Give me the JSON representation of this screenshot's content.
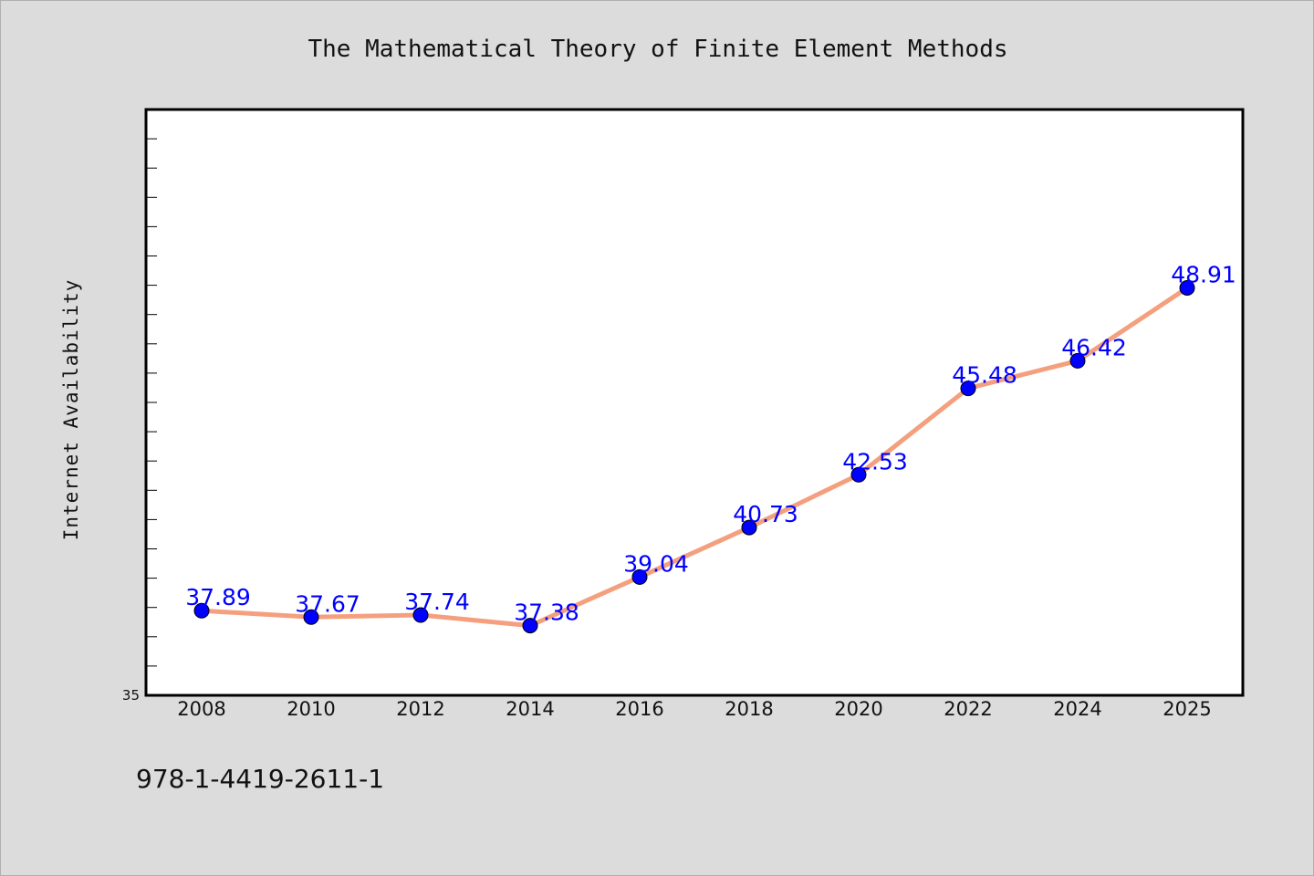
{
  "chart_data": {
    "type": "line",
    "title": "The Mathematical Theory of Finite Element Methods",
    "xlabel": "",
    "ylabel": "Internet Availability",
    "categories": [
      "2008",
      "2010",
      "2012",
      "2014",
      "2016",
      "2018",
      "2020",
      "2022",
      "2024",
      "2025"
    ],
    "series": [
      {
        "values": [
          37.89,
          37.67,
          37.74,
          37.38,
          39.04,
          40.73,
          42.53,
          45.48,
          46.42,
          48.91
        ],
        "data_labels": [
          "37.89",
          "37.67",
          "37.74",
          "37.38",
          "39.04",
          "40.73",
          "42.53",
          "45.48",
          "46.42",
          "48.91"
        ],
        "line_color": "#f4a07e",
        "marker_color": "#0000ff"
      }
    ],
    "ylim": [
      35,
      55
    ],
    "yticks_labeled": [
      "35"
    ],
    "grid": false,
    "legend": "none"
  },
  "footer": {
    "text": "978-1-4419-2611-1"
  },
  "colors": {
    "background": "#dcdcdc",
    "plot_background": "#ffffff",
    "axis": "#000000",
    "label": "#0000ff"
  }
}
